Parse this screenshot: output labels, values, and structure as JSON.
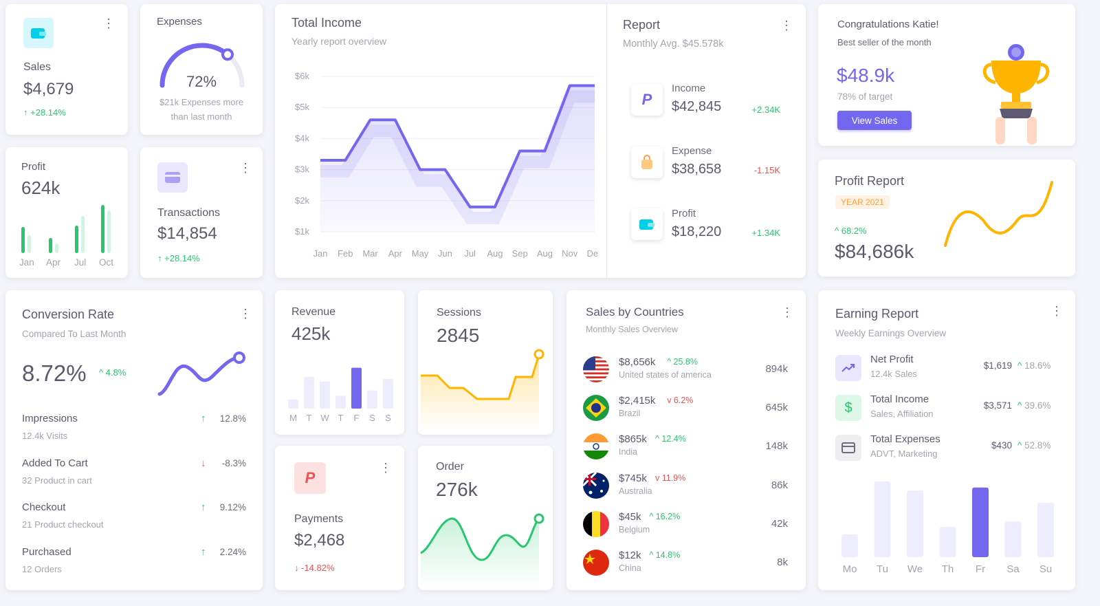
{
  "sales": {
    "label": "Sales",
    "value": "$4,679",
    "change": "+28.14%"
  },
  "expenses": {
    "label": "Expenses",
    "percent_text": "72%",
    "percent": 72,
    "note_line1": "$21k Expenses more",
    "note_line2": "than last month"
  },
  "profit_small": {
    "label": "Profit",
    "value": "624k",
    "months": [
      "Jan",
      "Apr",
      "Jul",
      "Oct"
    ]
  },
  "transactions": {
    "label": "Transactions",
    "value": "$14,854",
    "change": "+28.14%"
  },
  "total_income": {
    "title": "Total Income",
    "subtitle": "Yearly report overview",
    "chart_data": {
      "type": "line",
      "categories": [
        "Jan",
        "Feb",
        "Mar",
        "Apr",
        "May",
        "Jun",
        "Jul",
        "Aug",
        "Sep",
        "Aug",
        "Nov",
        "Dec"
      ],
      "values": [
        3.3,
        3.3,
        4.6,
        4.6,
        3.0,
        3.0,
        1.8,
        1.8,
        3.6,
        3.6,
        5.7,
        5.7
      ],
      "y_ticks": [
        "$6k",
        "$5k",
        "$4k",
        "$3k",
        "$2k",
        "$1k"
      ],
      "ylim": [
        1,
        6
      ]
    }
  },
  "report": {
    "title": "Report",
    "subtitle": "Monthly Avg. $45.578k",
    "items": [
      {
        "label": "Income",
        "value": "$42,845",
        "change": "+2.34K"
      },
      {
        "label": "Expense",
        "value": "$38,658",
        "change": "-1.15K"
      },
      {
        "label": "Profit",
        "value": "$18,220",
        "change": "+1.34K"
      }
    ]
  },
  "congrats": {
    "title": "Congratulations Katie!",
    "subtitle": "Best seller of the month",
    "value": "$48.9k",
    "target": "78% of target",
    "button": "View Sales"
  },
  "profit_report": {
    "title": "Profit Report",
    "badge": "YEAR 2021",
    "change": "68.2%",
    "value": "$84,686k"
  },
  "conversion": {
    "title": "Conversion Rate",
    "subtitle": "Compared To Last Month",
    "value": "8.72%",
    "change": "4.8%",
    "rows": [
      {
        "label": "Impressions",
        "sub": "12.4k Visits",
        "change": "12.8%",
        "dir": "up"
      },
      {
        "label": "Added To Cart",
        "sub": "32 Product in cart",
        "change": "-8.3%",
        "dir": "down"
      },
      {
        "label": "Checkout",
        "sub": "21 Product checkout",
        "change": "9.12%",
        "dir": "up"
      },
      {
        "label": "Purchased",
        "sub": "12 Orders",
        "change": "2.24%",
        "dir": "up"
      }
    ]
  },
  "revenue": {
    "label": "Revenue",
    "value": "425k",
    "chart_data": {
      "type": "bar",
      "categories": [
        "M",
        "T",
        "W",
        "T",
        "F",
        "S",
        "S"
      ],
      "values": [
        20,
        70,
        60,
        28,
        90,
        40,
        65
      ]
    }
  },
  "sessions": {
    "label": "Sessions",
    "value": "2845"
  },
  "payments": {
    "label": "Payments",
    "value": "$2,468",
    "change": "-14.82%"
  },
  "order": {
    "label": "Order",
    "value": "276k"
  },
  "countries": {
    "title": "Sales by Countries",
    "subtitle": "Monthly Sales Overview",
    "rows": [
      {
        "amount": "$8,656k",
        "change": "25.8%",
        "dir": "up",
        "name": "United states of america",
        "total": "894k"
      },
      {
        "amount": "$2,415k",
        "change": "6.2%",
        "dir": "down",
        "name": "Brazil",
        "total": "645k"
      },
      {
        "amount": "$865k",
        "change": "12.4%",
        "dir": "up",
        "name": "India",
        "total": "148k"
      },
      {
        "amount": "$745k",
        "change": "11.9%",
        "dir": "down",
        "name": "Australia",
        "total": "86k"
      },
      {
        "amount": "$45k",
        "change": "16.2%",
        "dir": "up",
        "name": "Belgium",
        "total": "42k"
      },
      {
        "amount": "$12k",
        "change": "14.8%",
        "dir": "up",
        "name": "China",
        "total": "8k"
      }
    ]
  },
  "earning": {
    "title": "Earning Report",
    "subtitle": "Weekly Earnings Overview",
    "rows": [
      {
        "label": "Net Profit",
        "sub": "12.4k Sales",
        "value": "$1,619",
        "change": "18.6%"
      },
      {
        "label": "Total Income",
        "sub": "Sales, Affiliation",
        "value": "$3,571",
        "change": "39.6%"
      },
      {
        "label": "Total Expenses",
        "sub": "ADVT, Marketing",
        "value": "$430",
        "change": "52.8%"
      }
    ],
    "chart_data": {
      "type": "bar",
      "categories": [
        "Mo",
        "Tu",
        "We",
        "Th",
        "Fr",
        "Sa",
        "Su"
      ],
      "values": [
        30,
        100,
        88,
        40,
        92,
        47,
        72
      ],
      "highlight": 4
    }
  },
  "colors": {
    "primary": "#7367f0",
    "success": "#28c76f",
    "danger": "#ea5455",
    "warning": "#ff9f43",
    "info": "#00cfe8"
  }
}
